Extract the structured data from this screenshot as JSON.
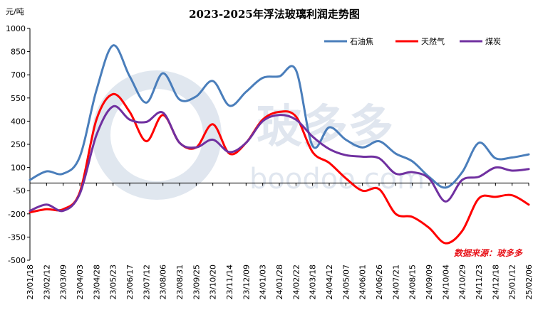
{
  "chart_data": {
    "type": "line",
    "title": "2023-2025年浮法玻璃利润走势图",
    "ylabel": "元/吨",
    "xlabel": "",
    "ylim": [
      -500,
      1000
    ],
    "yticks": [
      1000,
      850,
      700,
      550,
      400,
      250,
      100,
      -50,
      -200,
      -350,
      -500
    ],
    "grid": false,
    "legend_position": "top-right",
    "source_note": "数据来源：玻多多",
    "watermark": {
      "cn": "玻多多",
      "en": "boodoo.com"
    },
    "x": [
      "23/01/18",
      "23/02/12",
      "23/03/09",
      "23/04/03",
      "23/04/28",
      "23/05/23",
      "23/06/17",
      "23/07/12",
      "23/08/06",
      "23/08/31",
      "23/09/25",
      "23/10/20",
      "23/11/14",
      "23/12/09",
      "24/01/03",
      "24/01/28",
      "24/02/22",
      "24/03/18",
      "24/04/12",
      "24/05/07",
      "24/06/01",
      "24/06/26",
      "24/07/21",
      "24/08/15",
      "24/09/09",
      "24/10/04",
      "24/10/29",
      "24/11/23",
      "24/12/18",
      "25/01/12",
      "25/02/06"
    ],
    "series": [
      {
        "name": "石油焦",
        "color": "#4a7ebb",
        "values": [
          20,
          75,
          60,
          170,
          600,
          890,
          690,
          520,
          710,
          540,
          560,
          660,
          500,
          590,
          680,
          690,
          730,
          240,
          360,
          280,
          230,
          270,
          190,
          140,
          40,
          -30,
          70,
          260,
          160,
          165,
          185
        ]
      },
      {
        "name": "天然气",
        "color": "#ff0000",
        "values": [
          -190,
          -170,
          -170,
          -60,
          410,
          575,
          460,
          270,
          440,
          260,
          230,
          380,
          190,
          260,
          410,
          460,
          430,
          200,
          130,
          30,
          -50,
          -40,
          -200,
          -220,
          -290,
          -390,
          -310,
          -100,
          -90,
          -80,
          -140
        ]
      },
      {
        "name": "煤炭",
        "color": "#7030a0",
        "values": [
          -180,
          -140,
          -180,
          -70,
          310,
          495,
          410,
          395,
          455,
          260,
          230,
          280,
          200,
          260,
          400,
          440,
          410,
          300,
          220,
          180,
          170,
          160,
          60,
          70,
          30,
          -120,
          20,
          40,
          100,
          80,
          90
        ]
      }
    ]
  }
}
